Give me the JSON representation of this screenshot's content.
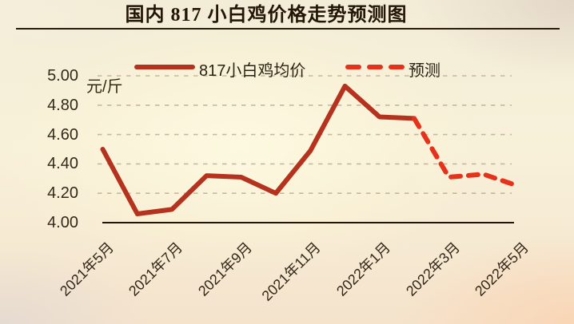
{
  "title": "国内 817 小白鸡价格走势预测图",
  "unit_label": "元/斤",
  "legend": {
    "average_label": "817小白鸡均价",
    "forecast_label": "预测"
  },
  "colors": {
    "solid_line": "#B5331E",
    "dashed_line": "#E6321B",
    "axis": "#1F1508",
    "grid": "#8F8168",
    "title_text": "#241607",
    "label_text": "#33281A"
  },
  "y_axis": {
    "ticks": [
      "5.00",
      "4.80",
      "4.60",
      "4.40",
      "4.20",
      "4.00"
    ]
  },
  "x_axis": {
    "ticks": [
      "2021年5月",
      "2021年7月",
      "2021年9月",
      "2021年11月",
      "2022年1月",
      "2022年3月",
      "2022年5月"
    ]
  },
  "chart_data": {
    "type": "line",
    "title": "国内 817 小白鸡价格走势预测图",
    "ylabel": "元/斤",
    "ylim": [
      4.0,
      5.0
    ],
    "grid": "dashed-horizontal",
    "legend_position": "top",
    "x": [
      "2021年5月",
      "2021年6月",
      "2021年7月",
      "2021年8月",
      "2021年9月",
      "2021年10月",
      "2021年11月",
      "2021年12月",
      "2022年1月",
      "2022年2月",
      "2022年3月",
      "2022年4月",
      "2022年5月"
    ],
    "series": [
      {
        "name": "817小白鸡均价",
        "style": "solid",
        "values": [
          4.5,
          4.06,
          4.09,
          4.32,
          4.31,
          4.2,
          4.49,
          4.93,
          4.72,
          4.71,
          null,
          null,
          null
        ]
      },
      {
        "name": "预测",
        "style": "dashed",
        "values": [
          null,
          null,
          null,
          null,
          null,
          null,
          null,
          null,
          null,
          4.71,
          4.31,
          4.33,
          4.25
        ]
      }
    ]
  }
}
